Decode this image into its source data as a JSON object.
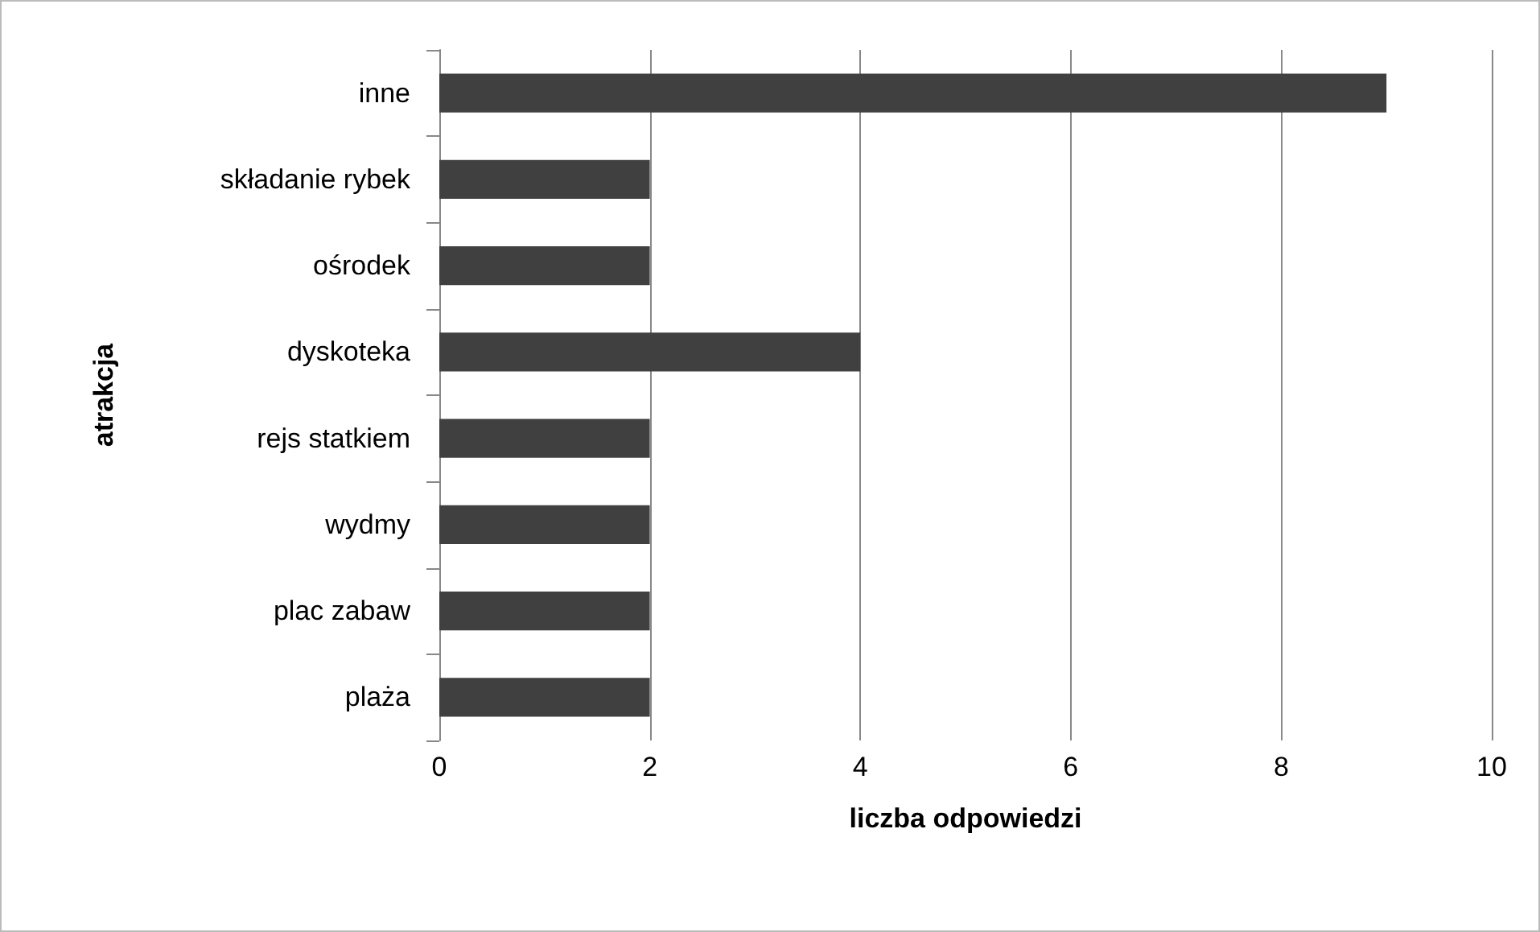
{
  "chart_data": {
    "type": "bar",
    "orientation": "horizontal",
    "xlabel": "liczba odpowiedzi",
    "ylabel": "atrakcja",
    "categories": [
      "inne",
      "składanie rybek",
      "ośrodek",
      "dyskoteka",
      "rejs statkiem",
      "wydmy",
      "plac zabaw",
      "plaża"
    ],
    "values": [
      9,
      2,
      2,
      4,
      2,
      2,
      2,
      2
    ],
    "color": "#404040",
    "xlim": [
      0,
      10
    ],
    "xticks": [
      0,
      2,
      4,
      6,
      8,
      10
    ],
    "grid": "x"
  }
}
